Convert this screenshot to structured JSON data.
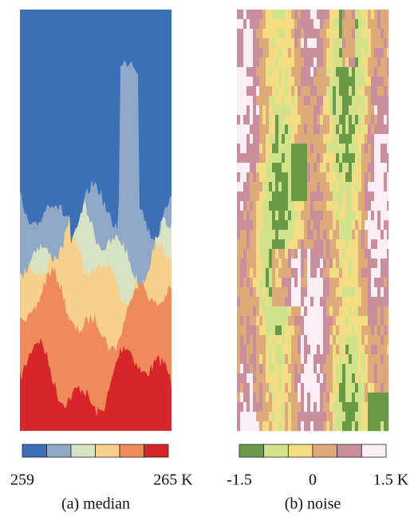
{
  "panels": [
    {
      "caption": "(a) median",
      "colorbar": {
        "colors": [
          "#3b6fb6",
          "#8fa8c8",
          "#d6e4c4",
          "#f7d08e",
          "#ef8a5a",
          "#d7262a"
        ],
        "lim": [
          259,
          265
        ],
        "ticks": [
          259,
          {
            "value": 265,
            "label": "265 K"
          }
        ]
      }
    },
    {
      "caption": "(b) noise",
      "colorbar": {
        "colors": [
          "#6a9a47",
          "#d2e38c",
          "#f3dc82",
          "#dfaa7a",
          "#c98f9c",
          "#fbeef5"
        ],
        "lim": [
          -1.5,
          1.5
        ],
        "ticks": [
          -1.5,
          0,
          {
            "value": 1.5,
            "label": "1.5 K"
          }
        ]
      }
    }
  ]
}
